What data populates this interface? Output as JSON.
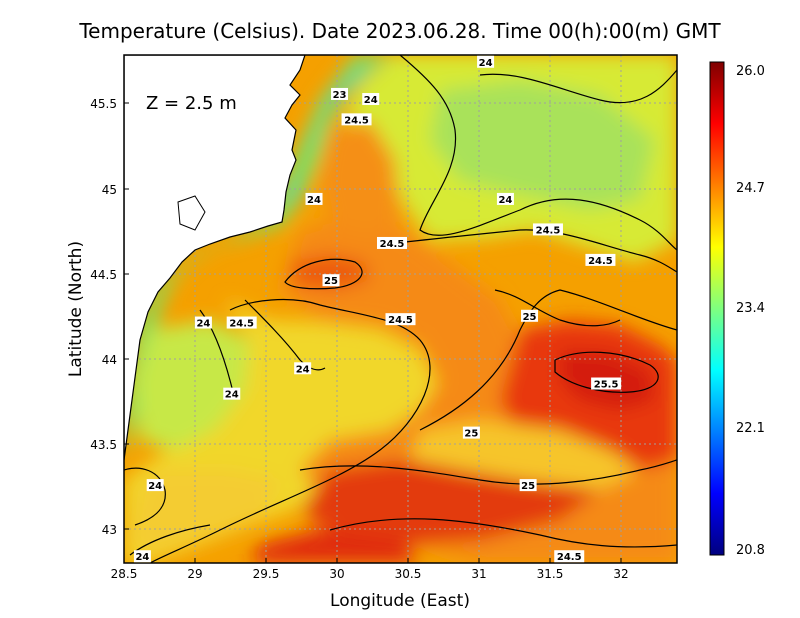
{
  "chart_data": {
    "type": "heatmap",
    "title": "Temperature (Celsius). Date 2023.06.28. Time 00(h):00(m) GMT",
    "xlabel": "Longitude (East)",
    "ylabel": "Latitude (North)",
    "depth_label": "Z = 2.5 m",
    "xlim": [
      28.5,
      32.4
    ],
    "ylim": [
      42.8,
      45.8
    ],
    "x_ticks": [
      "28.5",
      "29",
      "29.5",
      "30",
      "30.5",
      "31",
      "31.5",
      "32"
    ],
    "y_ticks": [
      "43",
      "43.5",
      "44",
      "44.5",
      "45",
      "45.5"
    ],
    "grid": true,
    "colorbar": {
      "min": 20.8,
      "max": 26.0,
      "ticks": [
        "26.0",
        "24.7",
        "23.4",
        "22.1",
        "20.8"
      ],
      "colors": [
        "#00007f",
        "#0000ff",
        "#007fff",
        "#00ffff",
        "#7fff7f",
        "#ffff00",
        "#ff7f00",
        "#ff0000",
        "#7f0000"
      ]
    },
    "contour_labels": [
      {
        "text": "23",
        "x": 30.02,
        "y": 45.57
      },
      {
        "text": "24",
        "x": 30.24,
        "y": 45.54
      },
      {
        "text": "24",
        "x": 31.05,
        "y": 45.76
      },
      {
        "text": "24.5",
        "x": 30.14,
        "y": 45.42
      },
      {
        "text": "24",
        "x": 29.84,
        "y": 44.95
      },
      {
        "text": "24",
        "x": 31.19,
        "y": 44.95
      },
      {
        "text": "24.5",
        "x": 31.49,
        "y": 44.77
      },
      {
        "text": "24.5",
        "x": 30.39,
        "y": 44.69
      },
      {
        "text": "24.5",
        "x": 31.86,
        "y": 44.59
      },
      {
        "text": "25",
        "x": 29.96,
        "y": 44.47
      },
      {
        "text": "25",
        "x": 31.36,
        "y": 44.26
      },
      {
        "text": "24",
        "x": 29.06,
        "y": 44.22
      },
      {
        "text": "24.5",
        "x": 29.33,
        "y": 44.22
      },
      {
        "text": "24.5",
        "x": 30.45,
        "y": 44.24
      },
      {
        "text": "24",
        "x": 29.76,
        "y": 43.95
      },
      {
        "text": "24",
        "x": 29.26,
        "y": 43.8
      },
      {
        "text": "25.5",
        "x": 31.9,
        "y": 43.86
      },
      {
        "text": "25",
        "x": 30.95,
        "y": 43.57
      },
      {
        "text": "24",
        "x": 28.72,
        "y": 43.26
      },
      {
        "text": "25",
        "x": 31.35,
        "y": 43.26
      },
      {
        "text": "24",
        "x": 28.63,
        "y": 42.84
      },
      {
        "text": "24.5",
        "x": 31.64,
        "y": 42.84
      }
    ]
  }
}
